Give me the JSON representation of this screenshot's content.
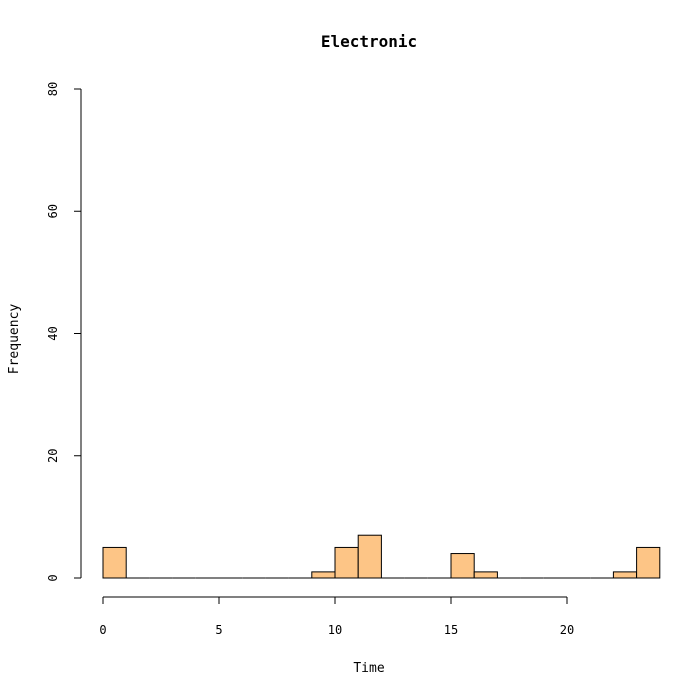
{
  "chart_data": {
    "type": "histogram",
    "title": "Electronic",
    "xlabel": "Time",
    "ylabel": "Frequency",
    "xlim": [
      0,
      24
    ],
    "ylim": [
      0,
      80
    ],
    "x_ticks": [
      "0",
      "5",
      "10",
      "15",
      "20"
    ],
    "y_ticks": [
      "0",
      "20",
      "40",
      "60",
      "80"
    ],
    "bin_width": 1,
    "bins": [
      {
        "start": 0,
        "end": 1,
        "count": 5
      },
      {
        "start": 1,
        "end": 2,
        "count": 0
      },
      {
        "start": 2,
        "end": 3,
        "count": 0
      },
      {
        "start": 3,
        "end": 4,
        "count": 0
      },
      {
        "start": 4,
        "end": 5,
        "count": 0
      },
      {
        "start": 5,
        "end": 6,
        "count": 0
      },
      {
        "start": 6,
        "end": 7,
        "count": 0
      },
      {
        "start": 7,
        "end": 8,
        "count": 0
      },
      {
        "start": 8,
        "end": 9,
        "count": 0
      },
      {
        "start": 9,
        "end": 10,
        "count": 1
      },
      {
        "start": 10,
        "end": 11,
        "count": 5
      },
      {
        "start": 11,
        "end": 12,
        "count": 7
      },
      {
        "start": 12,
        "end": 13,
        "count": 0
      },
      {
        "start": 13,
        "end": 14,
        "count": 0
      },
      {
        "start": 14,
        "end": 15,
        "count": 0
      },
      {
        "start": 15,
        "end": 16,
        "count": 4
      },
      {
        "start": 16,
        "end": 17,
        "count": 1
      },
      {
        "start": 17,
        "end": 18,
        "count": 0
      },
      {
        "start": 18,
        "end": 19,
        "count": 0
      },
      {
        "start": 19,
        "end": 20,
        "count": 0
      },
      {
        "start": 20,
        "end": 21,
        "count": 0
      },
      {
        "start": 21,
        "end": 22,
        "count": 0
      },
      {
        "start": 22,
        "end": 23,
        "count": 1
      },
      {
        "start": 23,
        "end": 24,
        "count": 5
      }
    ],
    "bar_color": "#FDC586",
    "grid": false
  }
}
